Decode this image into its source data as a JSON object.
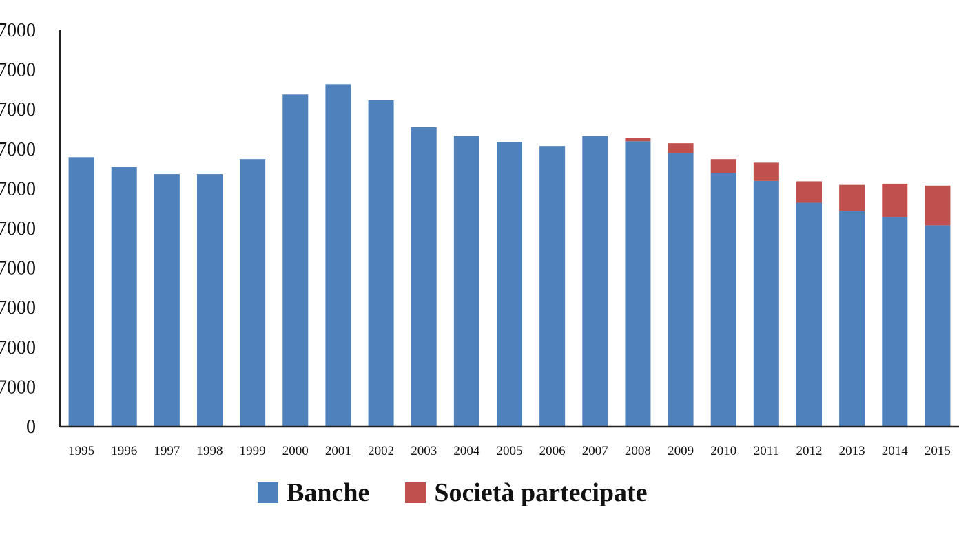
{
  "chart_data": {
    "type": "bar",
    "stacked": true,
    "categories": [
      "1995",
      "1996",
      "1997",
      "1998",
      "1999",
      "2000",
      "2001",
      "2002",
      "2003",
      "2004",
      "2005",
      "2006",
      "2007",
      "2008",
      "2009",
      "2010",
      "2011",
      "2012",
      "2013",
      "2014",
      "2015"
    ],
    "series": [
      {
        "name": "Banche",
        "color": "#4f81bd",
        "values": [
          68000,
          65500,
          63700,
          63700,
          67500,
          83800,
          86400,
          82300,
          75600,
          73300,
          71800,
          70800,
          73300,
          72000,
          69000,
          64000,
          62000,
          56500,
          54500,
          52800,
          50800
        ]
      },
      {
        "name": "Società partecipate",
        "color": "#c0504d",
        "values": [
          0,
          0,
          0,
          0,
          0,
          0,
          0,
          0,
          0,
          0,
          0,
          0,
          0,
          800,
          2500,
          3500,
          4600,
          5400,
          6500,
          8500,
          10000
        ]
      }
    ],
    "yticks": [
      "7000",
      "7000",
      "7000",
      "7000",
      "7000",
      "7000",
      "7000",
      "7000",
      "7000",
      "7000",
      "0"
    ],
    "ylim": [
      0,
      100000
    ],
    "legend_position": "bottom",
    "grid": false
  }
}
